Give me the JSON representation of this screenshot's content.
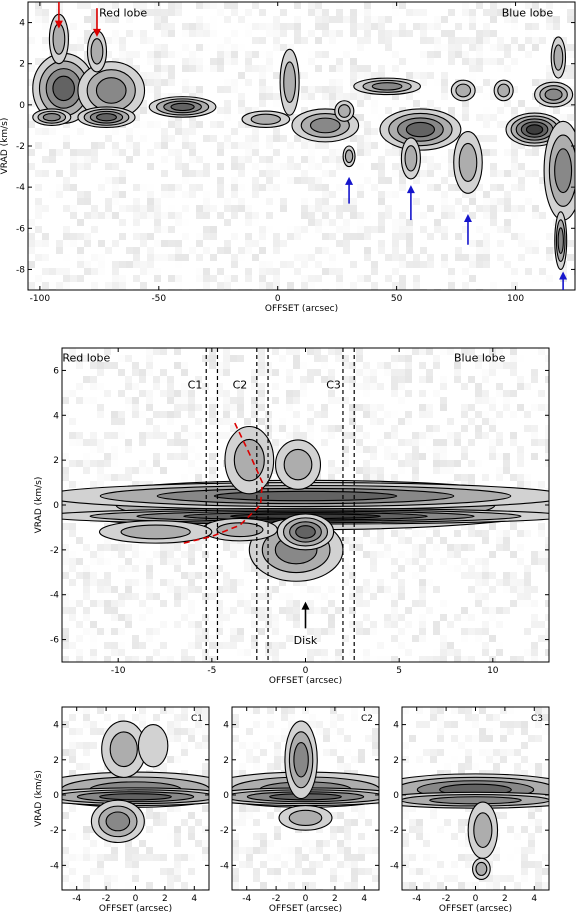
{
  "chart_data": [
    {
      "type": "heatmap",
      "panel": "top",
      "xlabel": "OFFSET (arcsec)",
      "ylabel": "VRAD (km/s)",
      "xlim": [
        -105,
        125
      ],
      "ylim": [
        -9,
        5
      ],
      "xticks": [
        -100,
        -50,
        0,
        50,
        100
      ],
      "yticks": [
        -8,
        -6,
        -4,
        -2,
        0,
        2,
        4
      ],
      "annotations": [
        {
          "text": "Red lobe",
          "x": -65,
          "y": 4.3
        },
        {
          "text": "Blue lobe",
          "x": 105,
          "y": 4.3
        }
      ],
      "arrows": [
        {
          "color": "#dd0000",
          "x": -92,
          "y_from": 5,
          "y_to": 3.8,
          "direction": "down"
        },
        {
          "color": "#dd0000",
          "x": -76,
          "y_from": 4.7,
          "y_to": 3.4,
          "direction": "down"
        },
        {
          "color": "#1515cc",
          "x": 30,
          "y_from": -4.8,
          "y_to": -3.6,
          "direction": "up"
        },
        {
          "color": "#1515cc",
          "x": 56,
          "y_from": -5.6,
          "y_to": -4.0,
          "direction": "up"
        },
        {
          "color": "#1515cc",
          "x": 80,
          "y_from": -6.8,
          "y_to": -5.4,
          "direction": "up"
        },
        {
          "color": "#1515cc",
          "x": 120,
          "y_from": -9.0,
          "y_to": -8.2,
          "direction": "up"
        }
      ],
      "blobs": [
        {
          "x": -90,
          "y": 0.8,
          "dx": 13,
          "dy": 1.7,
          "level": 0.85
        },
        {
          "x": -70,
          "y": 0.7,
          "dx": 14,
          "dy": 1.4,
          "level": 0.65
        },
        {
          "x": -92,
          "y": 3.2,
          "dx": 4,
          "dy": 1.2,
          "level": 0.35
        },
        {
          "x": -76,
          "y": 2.6,
          "dx": 4,
          "dy": 1.0,
          "level": 0.35
        },
        {
          "x": -95,
          "y": -0.6,
          "dx": 8,
          "dy": 0.4,
          "level": 0.6
        },
        {
          "x": -72,
          "y": -0.6,
          "dx": 12,
          "dy": 0.5,
          "level": 0.7
        },
        {
          "x": -40,
          "y": -0.1,
          "dx": 14,
          "dy": 0.5,
          "level": 0.7
        },
        {
          "x": -5,
          "y": -0.7,
          "dx": 10,
          "dy": 0.4,
          "level": 0.45
        },
        {
          "x": 5,
          "y": 1.1,
          "dx": 4,
          "dy": 1.6,
          "level": 0.45
        },
        {
          "x": 20,
          "y": -1.0,
          "dx": 14,
          "dy": 0.8,
          "level": 0.6
        },
        {
          "x": 28,
          "y": -0.3,
          "dx": 4,
          "dy": 0.5,
          "level": 0.45
        },
        {
          "x": 46,
          "y": 0.9,
          "dx": 14,
          "dy": 0.4,
          "level": 0.5
        },
        {
          "x": 60,
          "y": -1.2,
          "dx": 17,
          "dy": 1.0,
          "level": 0.85
        },
        {
          "x": 56,
          "y": -2.6,
          "dx": 4,
          "dy": 1.0,
          "level": 0.4
        },
        {
          "x": 30,
          "y": -2.5,
          "dx": 2.5,
          "dy": 0.5,
          "level": 0.45
        },
        {
          "x": 80,
          "y": -2.8,
          "dx": 6,
          "dy": 1.5,
          "level": 0.4
        },
        {
          "x": 78,
          "y": 0.7,
          "dx": 5,
          "dy": 0.5,
          "level": 0.45
        },
        {
          "x": 108,
          "y": -1.2,
          "dx": 12,
          "dy": 0.8,
          "level": 0.95
        },
        {
          "x": 120,
          "y": -3.2,
          "dx": 8,
          "dy": 2.4,
          "level": 0.65
        },
        {
          "x": 119,
          "y": -6.6,
          "dx": 2.5,
          "dy": 1.4,
          "level": 0.5
        },
        {
          "x": 116,
          "y": 0.5,
          "dx": 8,
          "dy": 0.6,
          "level": 0.6
        },
        {
          "x": 95,
          "y": 0.7,
          "dx": 4,
          "dy": 0.5,
          "level": 0.45
        },
        {
          "x": 118,
          "y": 2.3,
          "dx": 3,
          "dy": 1.0,
          "level": 0.35
        }
      ]
    },
    {
      "type": "heatmap",
      "panel": "middle",
      "xlabel": "OFFSET (arcsec)",
      "ylabel": "VRAD (km/s)",
      "xlim": [
        -13,
        13
      ],
      "ylim": [
        -7,
        7
      ],
      "xticks": [
        -10,
        -5,
        0,
        5,
        10
      ],
      "yticks": [
        -6,
        -4,
        -2,
        0,
        2,
        4,
        6
      ],
      "annotations": [
        {
          "text": "Red lobe",
          "x": -11.7,
          "y": 6.4
        },
        {
          "text": "Blue lobe",
          "x": 9.3,
          "y": 6.4
        },
        {
          "text": "C1",
          "x": -5.9,
          "y": 5.2
        },
        {
          "text": "C2",
          "x": -3.5,
          "y": 5.2
        },
        {
          "text": "C3",
          "x": 1.5,
          "y": 5.2
        },
        {
          "text": "Disk",
          "x": 0.0,
          "y": -6.2
        }
      ],
      "vlines": [
        -5.3,
        -4.7,
        -2.6,
        -2.0,
        2.0,
        2.6
      ],
      "arrow": {
        "x": 0.0,
        "y_from": -5.5,
        "y_to": -4.4,
        "color": "#000000"
      },
      "red_curve": [
        [
          -6.5,
          -1.7
        ],
        [
          -5.0,
          -1.4
        ],
        [
          -3.5,
          -0.9
        ],
        [
          -2.4,
          0.0
        ],
        [
          -2.3,
          1.0
        ],
        [
          -3.0,
          2.3
        ],
        [
          -3.8,
          3.7
        ]
      ],
      "blobs": [
        {
          "x": 0.0,
          "y": 0.0,
          "dx": 14,
          "dy": 1.1,
          "level": 0.6
        },
        {
          "x": 0.0,
          "y": 0.4,
          "dx": 14,
          "dy": 0.6,
          "level": 0.85
        },
        {
          "x": 0.0,
          "y": -0.5,
          "dx": 14,
          "dy": 0.35,
          "level": 0.95
        },
        {
          "x": -3.0,
          "y": 2.0,
          "dx": 1.3,
          "dy": 1.5,
          "level": 0.45
        },
        {
          "x": -0.4,
          "y": 1.8,
          "dx": 1.2,
          "dy": 1.1,
          "level": 0.45
        },
        {
          "x": -0.5,
          "y": -2.0,
          "dx": 2.5,
          "dy": 1.4,
          "level": 0.5
        },
        {
          "x": 0.0,
          "y": -1.2,
          "dx": 1.5,
          "dy": 0.8,
          "level": 0.8
        },
        {
          "x": -3.5,
          "y": -1.1,
          "dx": 2.0,
          "dy": 0.5,
          "level": 0.45
        },
        {
          "x": -8.0,
          "y": -1.2,
          "dx": 3.0,
          "dy": 0.5,
          "level": 0.3
        }
      ]
    },
    {
      "type": "heatmap",
      "panel": "C1",
      "label": "C1",
      "xlabel": "OFFSET (arcsec)",
      "ylabel": "VRAD (km/s)",
      "xlim": [
        -5,
        5
      ],
      "ylim": [
        -5.4,
        5
      ],
      "xticks": [
        -4,
        -2,
        0,
        2,
        4
      ],
      "yticks": [
        -4,
        -2,
        0,
        2,
        4
      ],
      "blobs": [
        {
          "x": 0.0,
          "y": 0.3,
          "dx": 7,
          "dy": 1.0,
          "level": 0.6
        },
        {
          "x": 0.0,
          "y": -0.1,
          "dx": 7,
          "dy": 0.5,
          "level": 0.8
        },
        {
          "x": -1.2,
          "y": -1.5,
          "dx": 1.8,
          "dy": 1.2,
          "level": 0.55
        },
        {
          "x": -0.8,
          "y": 2.6,
          "dx": 1.5,
          "dy": 1.6,
          "level": 0.3
        },
        {
          "x": 1.2,
          "y": 2.8,
          "dx": 1.0,
          "dy": 1.2,
          "level": 0.25
        }
      ]
    },
    {
      "type": "heatmap",
      "panel": "C2",
      "label": "C2",
      "xlabel": "OFFSET (arcsec)",
      "ylabel": "",
      "xlim": [
        -5,
        5
      ],
      "ylim": [
        -5.4,
        5
      ],
      "xticks": [
        -4,
        -2,
        0,
        2,
        4
      ],
      "yticks": [
        -4,
        -2,
        0,
        2,
        4
      ],
      "blobs": [
        {
          "x": 0.0,
          "y": 0.3,
          "dx": 7,
          "dy": 1.0,
          "level": 0.6
        },
        {
          "x": 0.0,
          "y": -0.1,
          "dx": 7,
          "dy": 0.5,
          "level": 0.85
        },
        {
          "x": -0.3,
          "y": 2.0,
          "dx": 1.1,
          "dy": 2.2,
          "level": 0.6
        },
        {
          "x": 0.0,
          "y": -1.3,
          "dx": 1.8,
          "dy": 0.7,
          "level": 0.45
        }
      ]
    },
    {
      "type": "heatmap",
      "panel": "C3",
      "label": "C3",
      "xlabel": "OFFSET (arcsec)",
      "ylabel": "",
      "xlim": [
        -5,
        5
      ],
      "ylim": [
        -5.4,
        5
      ],
      "xticks": [
        -4,
        -2,
        0,
        2,
        4
      ],
      "yticks": [
        -4,
        -2,
        0,
        2,
        4
      ],
      "blobs": [
        {
          "x": 0.0,
          "y": 0.3,
          "dx": 7,
          "dy": 0.9,
          "level": 0.8
        },
        {
          "x": 0.0,
          "y": -0.3,
          "dx": 7,
          "dy": 0.45,
          "level": 0.6
        },
        {
          "x": 0.5,
          "y": -2.0,
          "dx": 1.0,
          "dy": 1.6,
          "level": 0.35
        },
        {
          "x": 0.4,
          "y": -4.2,
          "dx": 0.6,
          "dy": 0.6,
          "level": 0.3
        }
      ]
    }
  ]
}
